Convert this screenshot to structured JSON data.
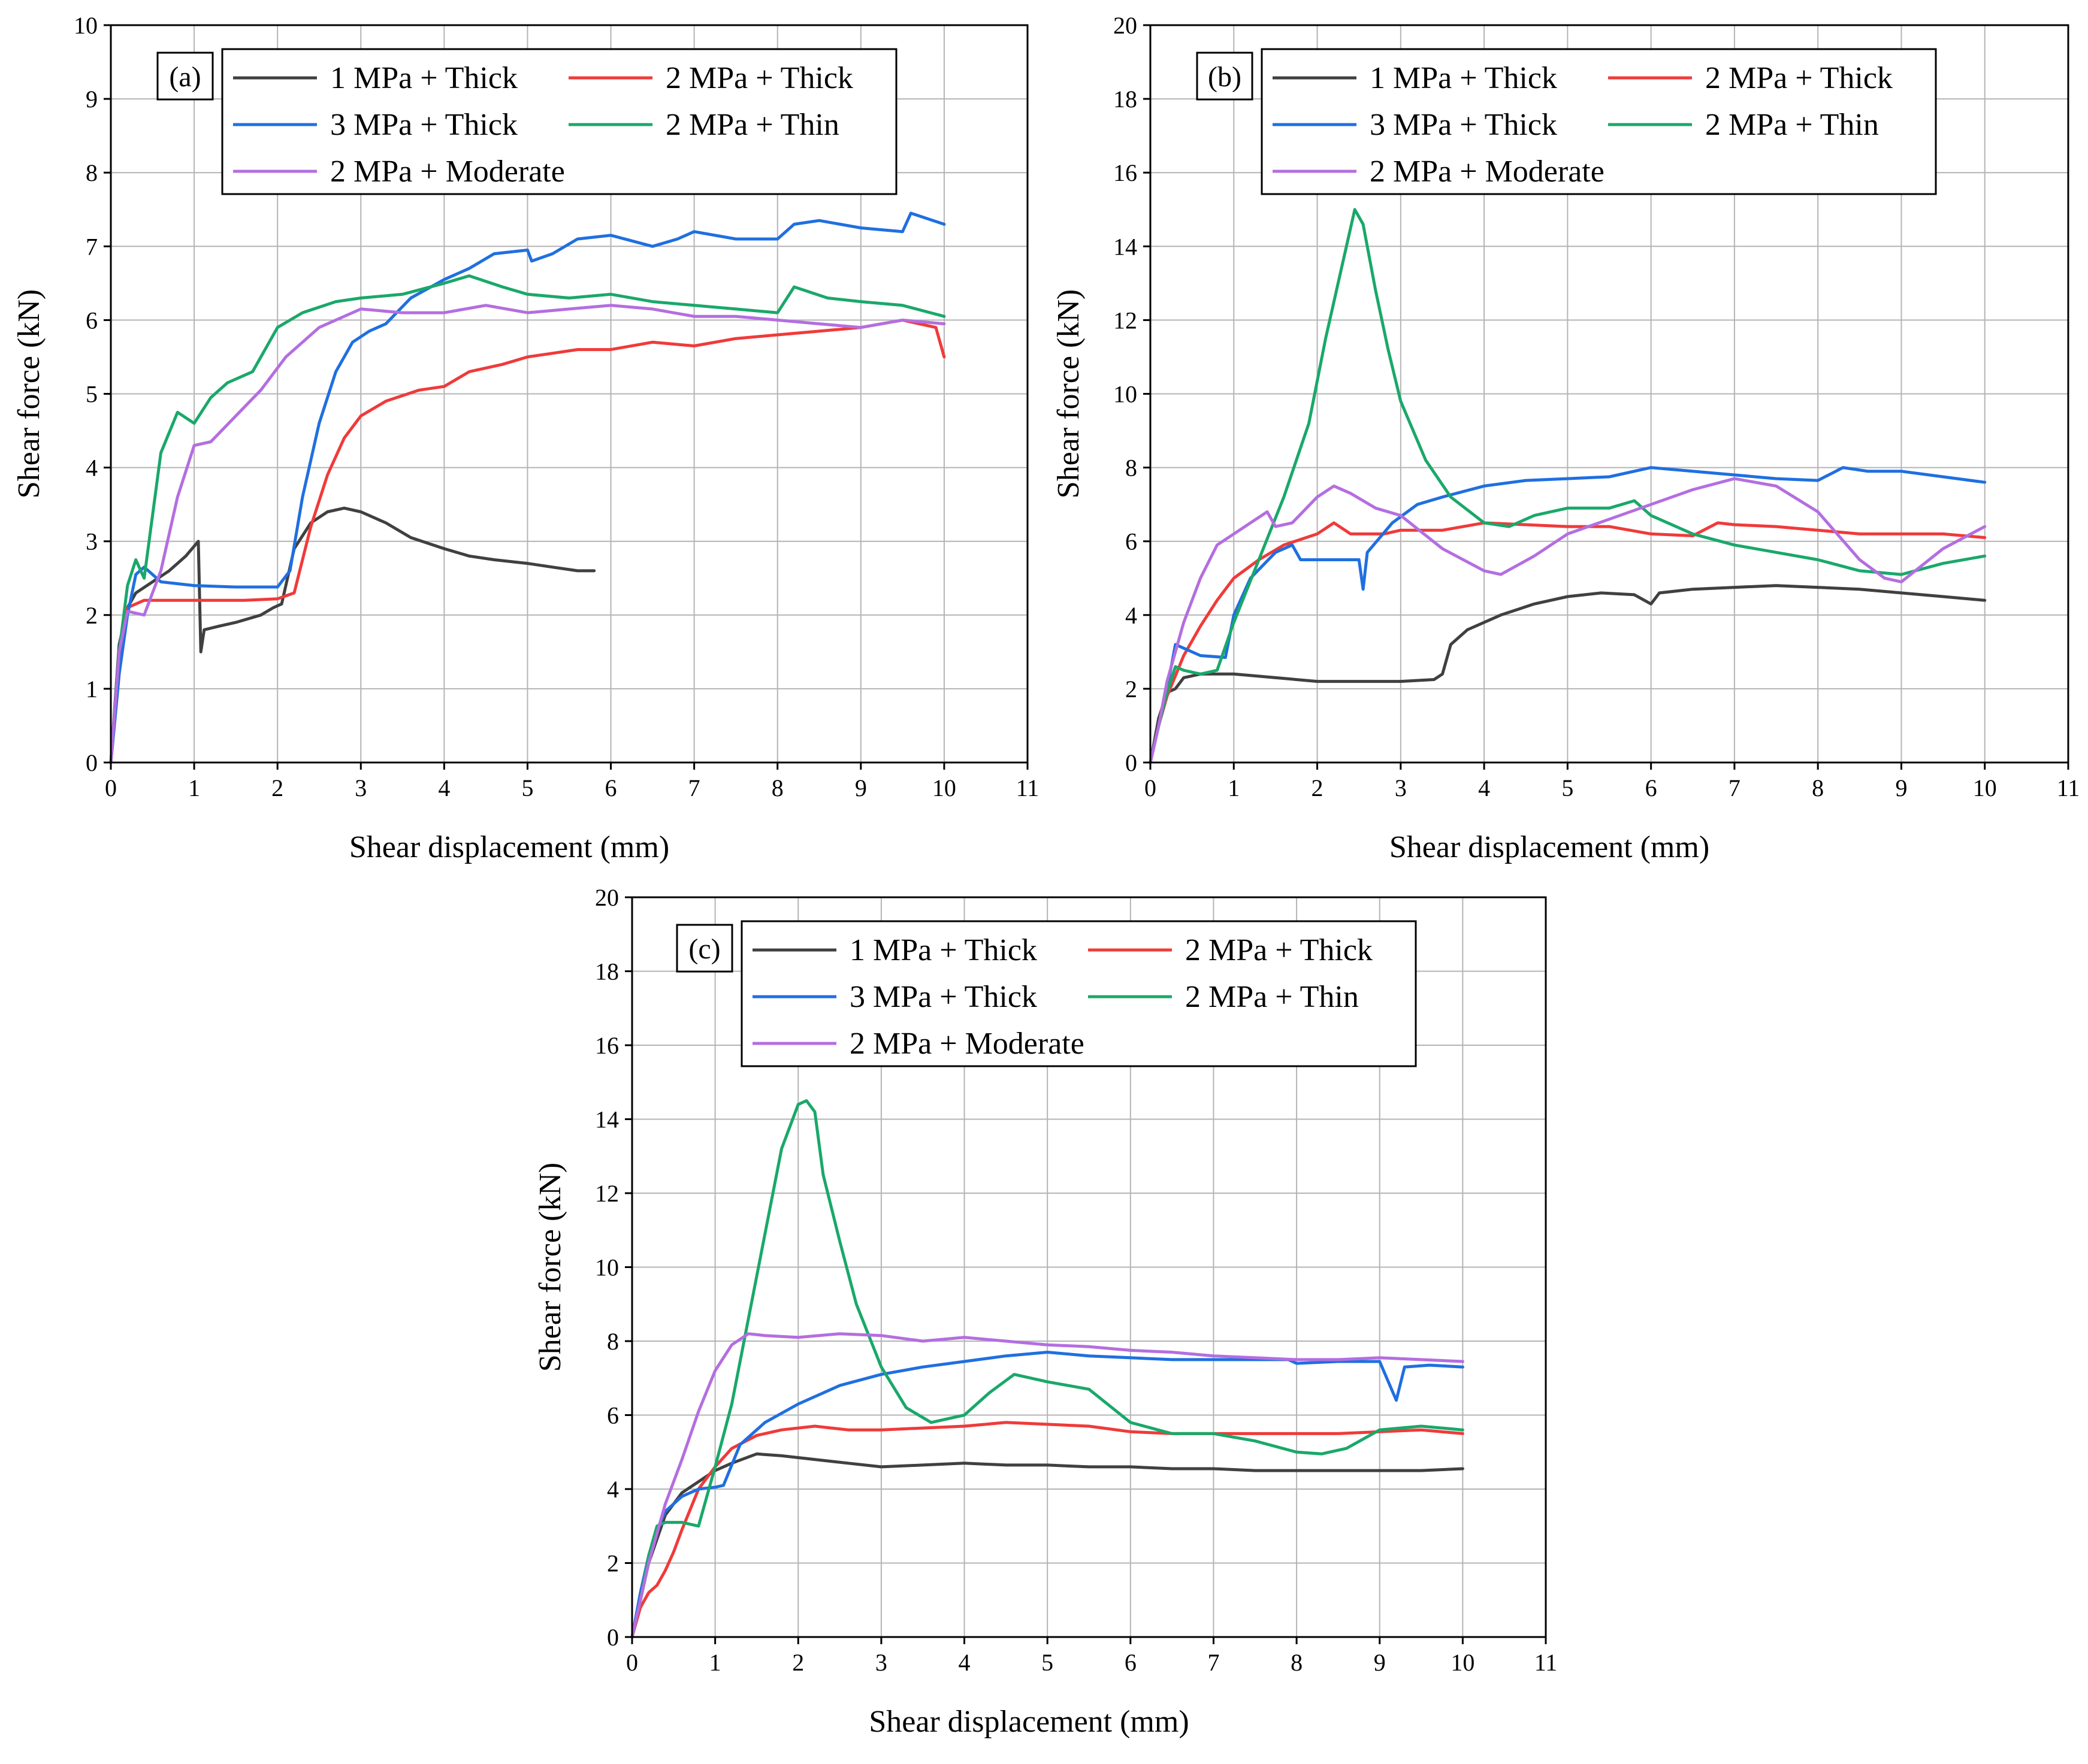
{
  "chart_data": [
    {
      "type": "line",
      "panel_label": "(a)",
      "xlabel": "Shear displacement (mm)",
      "ylabel": "Shear force (kN)",
      "xlim": [
        0,
        11
      ],
      "ylim": [
        0,
        10
      ],
      "xticks": [
        0,
        1,
        2,
        3,
        4,
        5,
        6,
        7,
        8,
        9,
        10,
        11
      ],
      "yticks": [
        0,
        1,
        2,
        3,
        4,
        5,
        6,
        7,
        8,
        9,
        10
      ],
      "grid": true,
      "legend_position": "top-left",
      "series": [
        {
          "name": "1 MPa + Thick",
          "color": "#404040",
          "x": [
            0,
            0.1,
            0.2,
            0.3,
            0.5,
            0.7,
            0.9,
            1.05,
            1.08,
            1.12,
            1.3,
            1.5,
            1.8,
            1.95,
            2.05,
            2.2,
            2.4,
            2.6,
            2.8,
            3.0,
            3.3,
            3.6,
            4.0,
            4.3,
            4.6,
            5.0,
            5.3,
            5.6,
            5.8
          ],
          "y": [
            0,
            1.6,
            2.1,
            2.3,
            2.45,
            2.6,
            2.8,
            3.0,
            1.5,
            1.8,
            1.85,
            1.9,
            2.0,
            2.1,
            2.15,
            2.9,
            3.25,
            3.4,
            3.45,
            3.4,
            3.25,
            3.05,
            2.9,
            2.8,
            2.75,
            2.7,
            2.65,
            2.6,
            2.6
          ]
        },
        {
          "name": "2 MPa + Thick",
          "color": "#f03a3a",
          "x": [
            0,
            0.1,
            0.2,
            0.4,
            0.8,
            1.2,
            1.6,
            2.0,
            2.2,
            2.4,
            2.6,
            2.8,
            3.0,
            3.3,
            3.7,
            4.0,
            4.3,
            4.7,
            5.0,
            5.3,
            5.6,
            6.0,
            6.5,
            7.0,
            7.5,
            8.0,
            8.5,
            9.0,
            9.5,
            9.9,
            10.0
          ],
          "y": [
            0,
            1.2,
            2.1,
            2.2,
            2.2,
            2.2,
            2.2,
            2.22,
            2.3,
            3.2,
            3.9,
            4.4,
            4.7,
            4.9,
            5.05,
            5.1,
            5.3,
            5.4,
            5.5,
            5.55,
            5.6,
            5.6,
            5.7,
            5.65,
            5.75,
            5.8,
            5.85,
            5.9,
            6.0,
            5.9,
            5.5
          ]
        },
        {
          "name": "3 MPa + Thick",
          "color": "#1f6fe0",
          "x": [
            0,
            0.1,
            0.2,
            0.3,
            0.4,
            0.6,
            1.0,
            1.5,
            2.0,
            2.15,
            2.3,
            2.5,
            2.7,
            2.9,
            3.1,
            3.3,
            3.6,
            4.0,
            4.3,
            4.6,
            5.0,
            5.05,
            5.3,
            5.6,
            6.0,
            6.5,
            6.8,
            7.0,
            7.5,
            8.0,
            8.2,
            8.5,
            9.0,
            9.5,
            9.6,
            10.0
          ],
          "y": [
            0,
            1.2,
            2.0,
            2.55,
            2.65,
            2.45,
            2.4,
            2.38,
            2.38,
            2.6,
            3.6,
            4.6,
            5.3,
            5.7,
            5.85,
            5.95,
            6.3,
            6.55,
            6.7,
            6.9,
            6.95,
            6.8,
            6.9,
            7.1,
            7.15,
            7.0,
            7.1,
            7.2,
            7.1,
            7.1,
            7.3,
            7.35,
            7.25,
            7.2,
            7.45,
            7.3
          ]
        },
        {
          "name": "2 MPa + Thin",
          "color": "#1aa86a",
          "x": [
            0,
            0.1,
            0.2,
            0.3,
            0.4,
            0.6,
            0.8,
            1.0,
            1.2,
            1.4,
            1.7,
            2.0,
            2.3,
            2.7,
            3.0,
            3.5,
            4.0,
            4.3,
            4.7,
            5.0,
            5.5,
            6.0,
            6.5,
            7.0,
            7.5,
            8.0,
            8.2,
            8.6,
            9.0,
            9.5,
            10.0
          ],
          "y": [
            0,
            1.5,
            2.4,
            2.75,
            2.5,
            4.2,
            4.75,
            4.6,
            4.95,
            5.15,
            5.3,
            5.9,
            6.1,
            6.25,
            6.3,
            6.35,
            6.5,
            6.6,
            6.45,
            6.35,
            6.3,
            6.35,
            6.25,
            6.2,
            6.15,
            6.1,
            6.45,
            6.3,
            6.25,
            6.2,
            6.05
          ]
        },
        {
          "name": "2 MPa + Moderate",
          "color": "#b46ee0",
          "x": [
            0,
            0.1,
            0.2,
            0.4,
            0.6,
            0.8,
            1.0,
            1.2,
            1.5,
            1.8,
            2.1,
            2.5,
            3.0,
            3.5,
            4.0,
            4.5,
            5.0,
            5.5,
            6.0,
            6.5,
            7.0,
            7.5,
            8.0,
            8.5,
            9.0,
            9.5,
            10.0
          ],
          "y": [
            0,
            1.5,
            2.05,
            2.0,
            2.6,
            3.6,
            4.3,
            4.35,
            4.7,
            5.05,
            5.5,
            5.9,
            6.15,
            6.1,
            6.1,
            6.2,
            6.1,
            6.15,
            6.2,
            6.15,
            6.05,
            6.05,
            6.0,
            5.95,
            5.9,
            6.0,
            5.95
          ]
        }
      ]
    },
    {
      "type": "line",
      "panel_label": "(b)",
      "xlabel": "Shear displacement (mm)",
      "ylabel": "Shear force (kN)",
      "xlim": [
        0,
        11
      ],
      "ylim": [
        0,
        20
      ],
      "xticks": [
        0,
        1,
        2,
        3,
        4,
        5,
        6,
        7,
        8,
        9,
        10,
        11
      ],
      "yticks": [
        0,
        2,
        4,
        6,
        8,
        10,
        12,
        14,
        16,
        18,
        20
      ],
      "grid": true,
      "legend_position": "top-left",
      "series": [
        {
          "name": "1 MPa + Thick",
          "color": "#404040",
          "x": [
            0,
            0.1,
            0.2,
            0.3,
            0.4,
            0.6,
            1.0,
            1.5,
            2.0,
            2.5,
            3.0,
            3.4,
            3.5,
            3.6,
            3.8,
            4.2,
            4.6,
            5.0,
            5.4,
            5.8,
            6.0,
            6.1,
            6.5,
            7.0,
            7.5,
            8.0,
            8.5,
            9.0,
            9.5,
            10.0
          ],
          "y": [
            0,
            1.2,
            1.9,
            2.0,
            2.3,
            2.4,
            2.4,
            2.3,
            2.2,
            2.2,
            2.2,
            2.25,
            2.4,
            3.2,
            3.6,
            4.0,
            4.3,
            4.5,
            4.6,
            4.55,
            4.3,
            4.6,
            4.7,
            4.75,
            4.8,
            4.75,
            4.7,
            4.6,
            4.5,
            4.4
          ]
        },
        {
          "name": "2 MPa + Thick",
          "color": "#f03a3a",
          "x": [
            0,
            0.1,
            0.2,
            0.4,
            0.6,
            0.8,
            1.0,
            1.3,
            1.6,
            2.0,
            2.2,
            2.4,
            2.8,
            3.0,
            3.5,
            4.0,
            4.5,
            5.0,
            5.5,
            6.0,
            6.5,
            6.8,
            7.0,
            7.5,
            8.0,
            8.5,
            9.0,
            9.5,
            10.0
          ],
          "y": [
            0,
            1.0,
            1.8,
            2.9,
            3.7,
            4.4,
            5.0,
            5.5,
            5.9,
            6.2,
            6.5,
            6.2,
            6.2,
            6.3,
            6.3,
            6.5,
            6.45,
            6.4,
            6.4,
            6.2,
            6.15,
            6.5,
            6.45,
            6.4,
            6.3,
            6.2,
            6.2,
            6.2,
            6.1
          ]
        },
        {
          "name": "3 MPa + Thick",
          "color": "#1f6fe0",
          "x": [
            0,
            0.1,
            0.2,
            0.3,
            0.4,
            0.6,
            0.9,
            1.0,
            1.2,
            1.5,
            1.7,
            1.8,
            2.2,
            2.5,
            2.55,
            2.6,
            2.9,
            3.2,
            3.5,
            4.0,
            4.5,
            5.0,
            5.5,
            6.0,
            6.5,
            7.0,
            7.5,
            8.0,
            8.3,
            8.6,
            9.0,
            9.5,
            10.0
          ],
          "y": [
            0,
            1.0,
            2.0,
            3.2,
            3.1,
            2.9,
            2.85,
            4.0,
            5.0,
            5.7,
            5.9,
            5.5,
            5.5,
            5.5,
            4.7,
            5.7,
            6.5,
            7.0,
            7.2,
            7.5,
            7.65,
            7.7,
            7.75,
            8.0,
            7.9,
            7.8,
            7.7,
            7.65,
            8.0,
            7.9,
            7.9,
            7.75,
            7.6
          ]
        },
        {
          "name": "2 MPa + Thin",
          "color": "#1aa86a",
          "x": [
            0,
            0.1,
            0.2,
            0.3,
            0.4,
            0.6,
            0.8,
            1.0,
            1.3,
            1.6,
            1.9,
            2.1,
            2.3,
            2.45,
            2.55,
            2.7,
            2.85,
            3.0,
            3.3,
            3.6,
            4.0,
            4.3,
            4.6,
            5.0,
            5.5,
            5.8,
            6.0,
            6.5,
            7.0,
            7.5,
            8.0,
            8.5,
            9.0,
            9.5,
            10.0
          ],
          "y": [
            0,
            1.0,
            1.9,
            2.6,
            2.5,
            2.4,
            2.5,
            3.8,
            5.5,
            7.2,
            9.2,
            11.5,
            13.5,
            15.0,
            14.6,
            12.8,
            11.2,
            9.8,
            8.2,
            7.2,
            6.5,
            6.4,
            6.7,
            6.9,
            6.9,
            7.1,
            6.7,
            6.2,
            5.9,
            5.7,
            5.5,
            5.2,
            5.1,
            5.4,
            5.6
          ]
        },
        {
          "name": "2 MPa + Moderate",
          "color": "#b46ee0",
          "x": [
            0,
            0.1,
            0.2,
            0.4,
            0.6,
            0.8,
            1.0,
            1.2,
            1.4,
            1.5,
            1.7,
            2.0,
            2.2,
            2.4,
            2.7,
            3.0,
            3.5,
            4.0,
            4.2,
            4.6,
            5.0,
            5.5,
            6.0,
            6.5,
            7.0,
            7.5,
            8.0,
            8.5,
            8.8,
            9.0,
            9.5,
            10.0
          ],
          "y": [
            0,
            1.0,
            2.2,
            3.8,
            5.0,
            5.9,
            6.2,
            6.5,
            6.8,
            6.4,
            6.5,
            7.2,
            7.5,
            7.3,
            6.9,
            6.7,
            5.8,
            5.2,
            5.1,
            5.6,
            6.2,
            6.6,
            7.0,
            7.4,
            7.7,
            7.5,
            6.8,
            5.5,
            5.0,
            4.9,
            5.8,
            6.4
          ]
        }
      ]
    },
    {
      "type": "line",
      "panel_label": "(c)",
      "xlabel": "Shear displacement (mm)",
      "ylabel": "Shear force (kN)",
      "xlim": [
        0,
        11
      ],
      "ylim": [
        0,
        20
      ],
      "xticks": [
        0,
        1,
        2,
        3,
        4,
        5,
        6,
        7,
        8,
        9,
        10,
        11
      ],
      "yticks": [
        0,
        2,
        4,
        6,
        8,
        10,
        12,
        14,
        16,
        18,
        20
      ],
      "grid": true,
      "legend_position": "top-left",
      "series": [
        {
          "name": "1 MPa + Thick",
          "color": "#404040",
          "x": [
            0,
            0.1,
            0.2,
            0.4,
            0.6,
            0.8,
            1.0,
            1.2,
            1.5,
            1.8,
            2.2,
            2.6,
            3.0,
            3.5,
            4.0,
            4.5,
            5.0,
            5.5,
            6.0,
            6.5,
            7.0,
            7.5,
            8.0,
            8.5,
            9.0,
            9.5,
            10.0
          ],
          "y": [
            0,
            1.0,
            2.0,
            3.3,
            3.9,
            4.2,
            4.5,
            4.7,
            4.95,
            4.9,
            4.8,
            4.7,
            4.6,
            4.65,
            4.7,
            4.65,
            4.65,
            4.6,
            4.6,
            4.55,
            4.55,
            4.5,
            4.5,
            4.5,
            4.5,
            4.5,
            4.55
          ]
        },
        {
          "name": "2 MPa + Thick",
          "color": "#f03a3a",
          "x": [
            0,
            0.1,
            0.2,
            0.3,
            0.4,
            0.5,
            0.6,
            0.8,
            1.0,
            1.2,
            1.5,
            1.8,
            2.2,
            2.6,
            3.0,
            3.5,
            4.0,
            4.5,
            5.0,
            5.5,
            6.0,
            6.5,
            7.0,
            7.5,
            8.0,
            8.5,
            9.0,
            9.5,
            10.0
          ],
          "y": [
            0,
            0.8,
            1.2,
            1.4,
            1.8,
            2.3,
            2.9,
            4.0,
            4.6,
            5.1,
            5.45,
            5.6,
            5.7,
            5.6,
            5.6,
            5.65,
            5.7,
            5.8,
            5.75,
            5.7,
            5.55,
            5.5,
            5.5,
            5.5,
            5.5,
            5.5,
            5.55,
            5.6,
            5.5
          ]
        },
        {
          "name": "3 MPa + Thick",
          "color": "#1f6fe0",
          "x": [
            0,
            0.1,
            0.2,
            0.3,
            0.4,
            0.6,
            0.8,
            1.0,
            1.1,
            1.3,
            1.6,
            2.0,
            2.5,
            3.0,
            3.5,
            4.0,
            4.5,
            5.0,
            5.5,
            6.0,
            6.5,
            7.0,
            7.5,
            7.9,
            8.0,
            8.5,
            9.0,
            9.2,
            9.3,
            9.6,
            10.0
          ],
          "y": [
            0,
            1.2,
            2.2,
            2.9,
            3.4,
            3.8,
            4.0,
            4.05,
            4.1,
            5.2,
            5.8,
            6.3,
            6.8,
            7.1,
            7.3,
            7.45,
            7.6,
            7.7,
            7.6,
            7.55,
            7.5,
            7.5,
            7.5,
            7.5,
            7.4,
            7.45,
            7.45,
            6.4,
            7.3,
            7.35,
            7.3
          ]
        },
        {
          "name": "2 MPa + Thin",
          "color": "#1aa86a",
          "x": [
            0,
            0.1,
            0.2,
            0.3,
            0.4,
            0.6,
            0.8,
            1.0,
            1.2,
            1.4,
            1.6,
            1.8,
            2.0,
            2.1,
            2.2,
            2.3,
            2.5,
            2.7,
            3.0,
            3.3,
            3.6,
            4.0,
            4.3,
            4.6,
            5.0,
            5.5,
            6.0,
            6.5,
            7.0,
            7.5,
            8.0,
            8.3,
            8.6,
            9.0,
            9.5,
            10.0
          ],
          "y": [
            0,
            1.0,
            2.2,
            3.0,
            3.1,
            3.1,
            3.0,
            4.6,
            6.3,
            8.6,
            10.9,
            13.2,
            14.4,
            14.5,
            14.2,
            12.5,
            10.7,
            9.0,
            7.3,
            6.2,
            5.8,
            6.0,
            6.6,
            7.1,
            6.9,
            6.7,
            5.8,
            5.5,
            5.5,
            5.3,
            5.0,
            4.95,
            5.1,
            5.6,
            5.7,
            5.6
          ]
        },
        {
          "name": "2 MPa + Moderate",
          "color": "#b46ee0",
          "x": [
            0,
            0.1,
            0.2,
            0.4,
            0.6,
            0.8,
            1.0,
            1.2,
            1.4,
            1.6,
            2.0,
            2.5,
            3.0,
            3.5,
            4.0,
            4.5,
            5.0,
            5.5,
            6.0,
            6.5,
            7.0,
            7.5,
            8.0,
            8.5,
            9.0,
            9.5,
            10.0
          ],
          "y": [
            0,
            1.0,
            2.0,
            3.6,
            4.8,
            6.1,
            7.2,
            7.9,
            8.2,
            8.15,
            8.1,
            8.2,
            8.15,
            8.0,
            8.1,
            8.0,
            7.9,
            7.85,
            7.75,
            7.7,
            7.6,
            7.55,
            7.5,
            7.5,
            7.55,
            7.5,
            7.45
          ]
        }
      ]
    }
  ]
}
